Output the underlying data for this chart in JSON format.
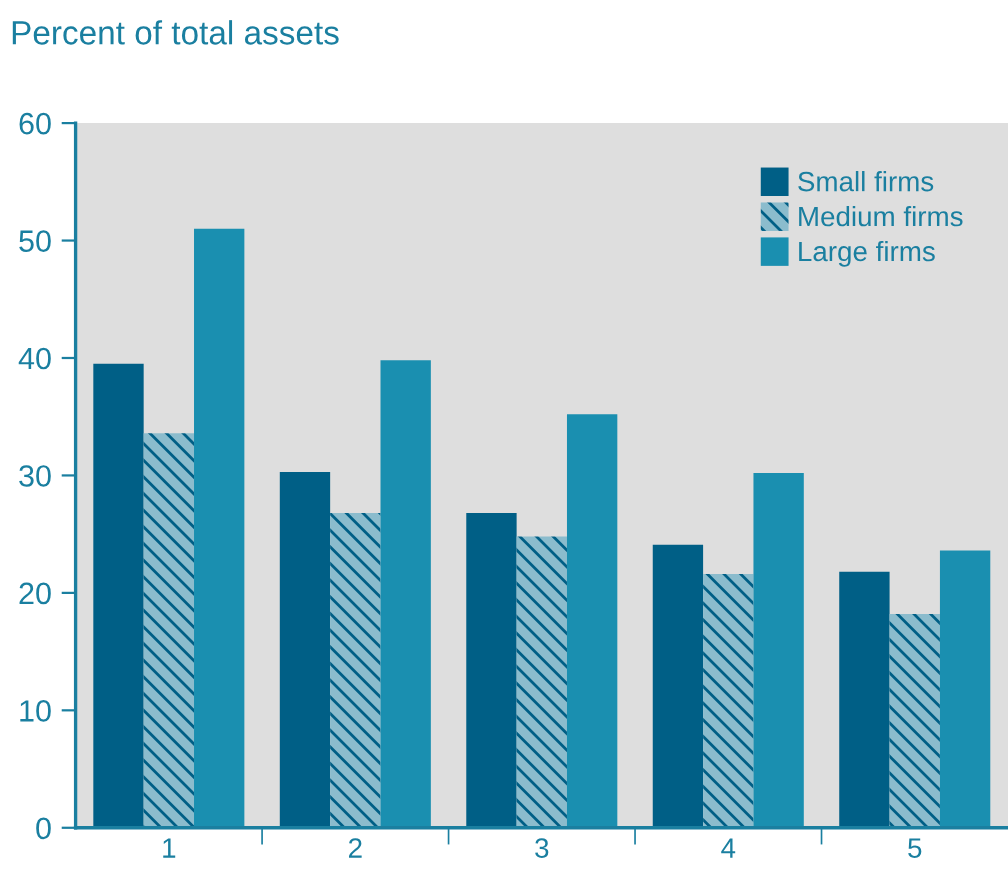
{
  "chart_data": {
    "type": "bar",
    "title": "Percent of total assets",
    "categories": [
      "1",
      "2",
      "3",
      "4",
      "5"
    ],
    "series": [
      {
        "name": "Small firms",
        "color": "#005f86",
        "values": [
          39.5,
          30.3,
          26.8,
          24.1,
          21.8
        ]
      },
      {
        "name": "Medium firms",
        "color": "#8bbccd",
        "values": [
          33.6,
          26.8,
          24.8,
          21.6,
          18.2
        ]
      },
      {
        "name": "Large firms",
        "color": "#1a8fb0",
        "values": [
          51.0,
          39.8,
          35.2,
          30.2,
          23.6
        ]
      }
    ],
    "ylim": [
      0,
      60
    ],
    "yticks": [
      0,
      10,
      20,
      30,
      40,
      50,
      60
    ],
    "grid": false,
    "legend": "top right"
  }
}
